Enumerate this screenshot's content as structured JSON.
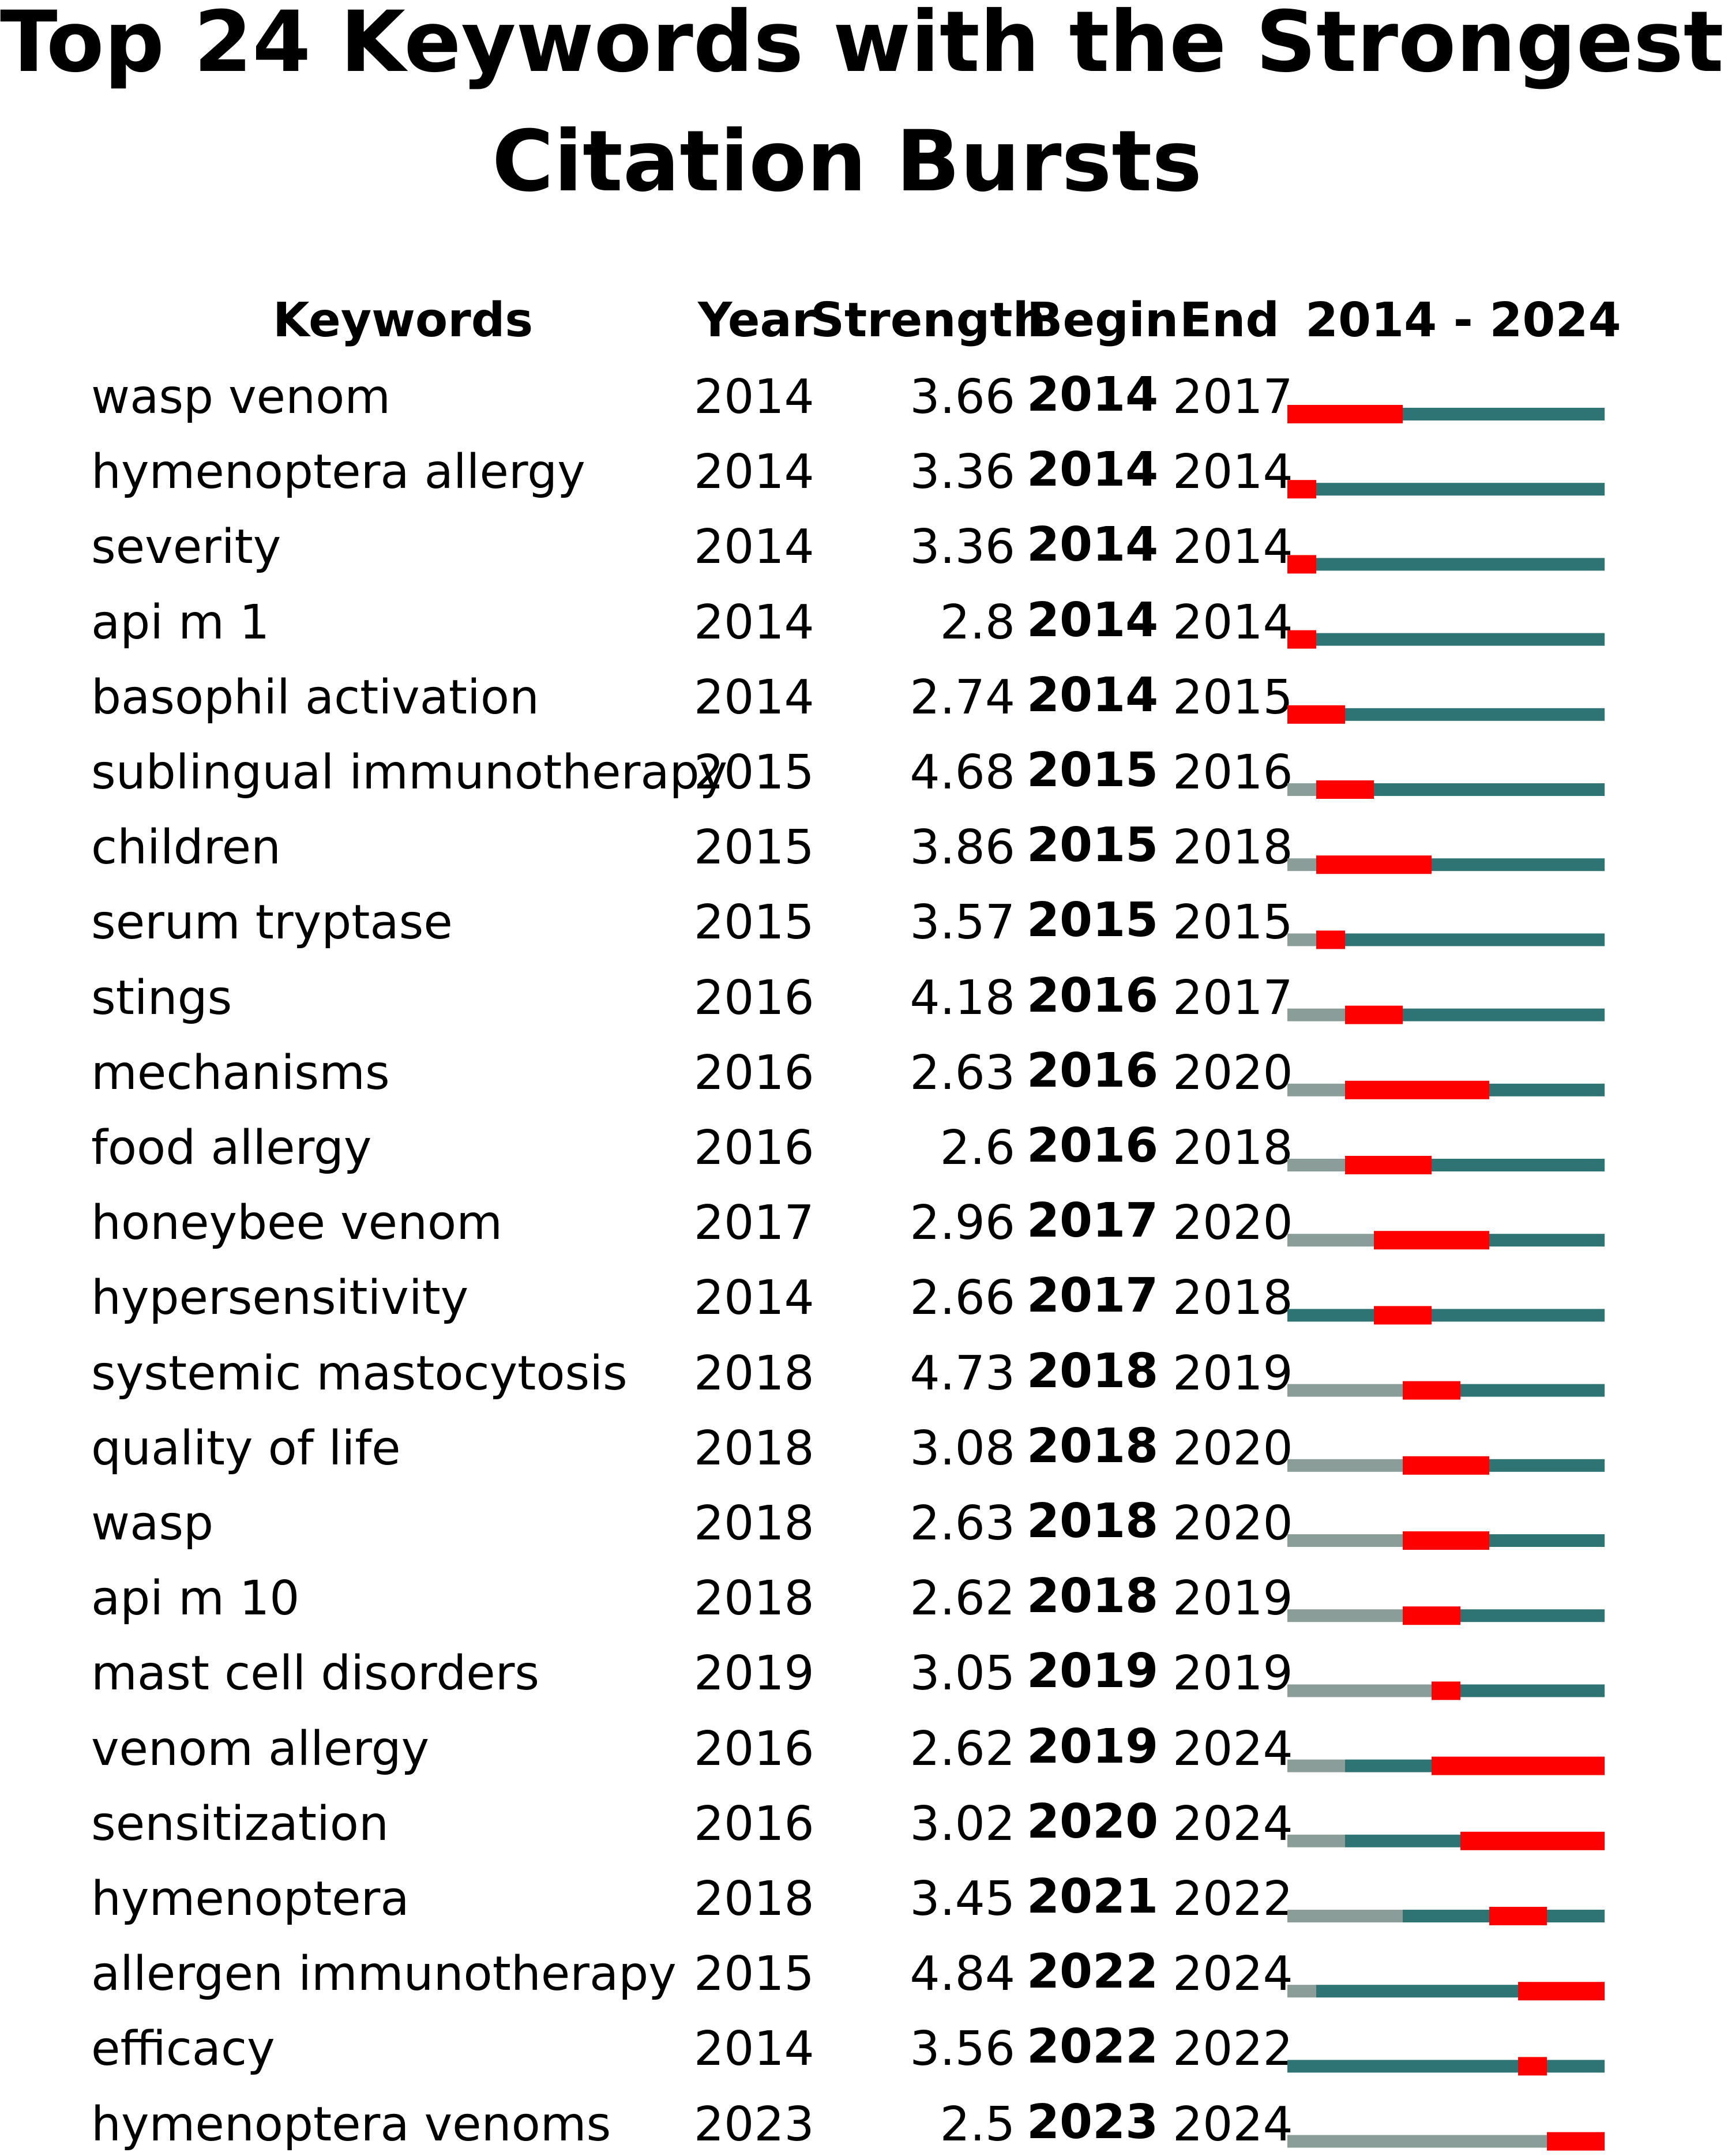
{
  "title_lines": [
    "Top 24 Keywords with the Strongest",
    "Citation Bursts"
  ],
  "headers": {
    "keywords": "Keywords",
    "year": "Year",
    "strength": "Strength",
    "begin": "Begin",
    "end": "End",
    "range": "2014 - 2024"
  },
  "colors": {
    "burst": "#ff0000",
    "active": "#2e7474",
    "inactive": "#8b9d99"
  },
  "chart_data": {
    "type": "table",
    "title": "Top 24 Keywords with the Strongest Citation Bursts",
    "timeline_start": 2014,
    "timeline_end": 2024,
    "columns": [
      "Keywords",
      "Year",
      "Strength",
      "Begin",
      "End",
      "2014 - 2024"
    ],
    "rows": [
      {
        "keyword": "wasp venom",
        "year": "2014",
        "strength": "3.66",
        "begin": "2014",
        "end": "2017"
      },
      {
        "keyword": "hymenoptera allergy",
        "year": "2014",
        "strength": "3.36",
        "begin": "2014",
        "end": "2014"
      },
      {
        "keyword": "severity",
        "year": "2014",
        "strength": "3.36",
        "begin": "2014",
        "end": "2014"
      },
      {
        "keyword": "api m 1",
        "year": "2014",
        "strength": "2.8",
        "begin": "2014",
        "end": "2014"
      },
      {
        "keyword": "basophil activation",
        "year": "2014",
        "strength": "2.74",
        "begin": "2014",
        "end": "2015"
      },
      {
        "keyword": "sublingual immunotherapy",
        "year": "2015",
        "strength": "4.68",
        "begin": "2015",
        "end": "2016"
      },
      {
        "keyword": "children",
        "year": "2015",
        "strength": "3.86",
        "begin": "2015",
        "end": "2018"
      },
      {
        "keyword": "serum tryptase",
        "year": "2015",
        "strength": "3.57",
        "begin": "2015",
        "end": "2015"
      },
      {
        "keyword": "stings",
        "year": "2016",
        "strength": "4.18",
        "begin": "2016",
        "end": "2017"
      },
      {
        "keyword": "mechanisms",
        "year": "2016",
        "strength": "2.63",
        "begin": "2016",
        "end": "2020"
      },
      {
        "keyword": "food allergy",
        "year": "2016",
        "strength": "2.6",
        "begin": "2016",
        "end": "2018"
      },
      {
        "keyword": "honeybee venom",
        "year": "2017",
        "strength": "2.96",
        "begin": "2017",
        "end": "2020"
      },
      {
        "keyword": "hypersensitivity",
        "year": "2014",
        "strength": "2.66",
        "begin": "2017",
        "end": "2018"
      },
      {
        "keyword": "systemic mastocytosis",
        "year": "2018",
        "strength": "4.73",
        "begin": "2018",
        "end": "2019"
      },
      {
        "keyword": "quality of life",
        "year": "2018",
        "strength": "3.08",
        "begin": "2018",
        "end": "2020"
      },
      {
        "keyword": "wasp",
        "year": "2018",
        "strength": "2.63",
        "begin": "2018",
        "end": "2020"
      },
      {
        "keyword": "api m 10",
        "year": "2018",
        "strength": "2.62",
        "begin": "2018",
        "end": "2019"
      },
      {
        "keyword": "mast cell disorders",
        "year": "2019",
        "strength": "3.05",
        "begin": "2019",
        "end": "2019"
      },
      {
        "keyword": "venom allergy",
        "year": "2016",
        "strength": "2.62",
        "begin": "2019",
        "end": "2024"
      },
      {
        "keyword": "sensitization",
        "year": "2016",
        "strength": "3.02",
        "begin": "2020",
        "end": "2024"
      },
      {
        "keyword": "hymenoptera",
        "year": "2018",
        "strength": "3.45",
        "begin": "2021",
        "end": "2022"
      },
      {
        "keyword": "allergen immunotherapy",
        "year": "2015",
        "strength": "4.84",
        "begin": "2022",
        "end": "2024"
      },
      {
        "keyword": "efficacy",
        "year": "2014",
        "strength": "3.56",
        "begin": "2022",
        "end": "2022"
      },
      {
        "keyword": "hymenoptera venoms",
        "year": "2023",
        "strength": "2.5",
        "begin": "2023",
        "end": "2024"
      }
    ]
  }
}
